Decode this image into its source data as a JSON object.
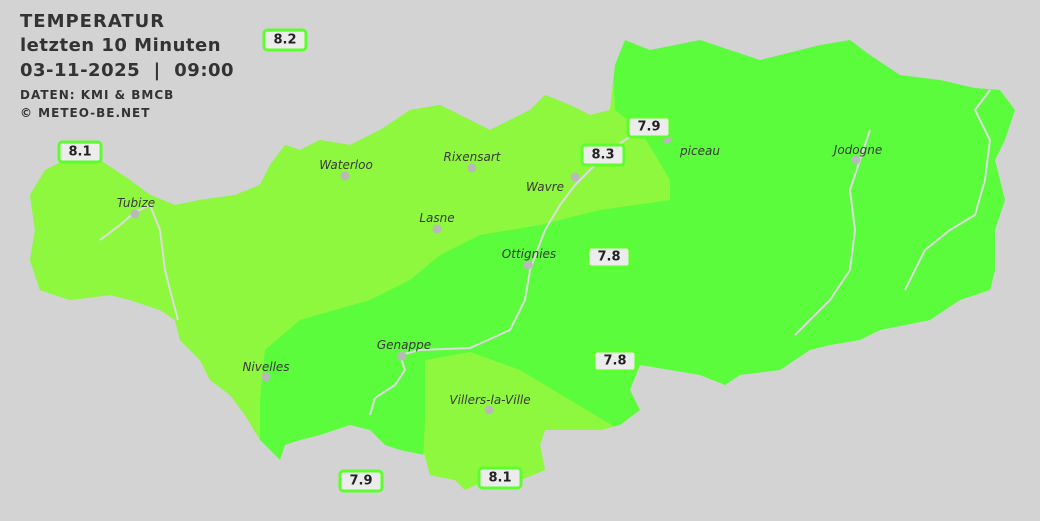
{
  "header": {
    "title": "TEMPERATUR",
    "subtitle": "letzten 10 Minuten",
    "datetime": "03-11-2025  |  09:00",
    "source": "DATEN: KMI & BMCB",
    "copyright": "© METEO-BE.NET"
  },
  "colors": {
    "background": "#d3d3d3",
    "temp_8_plus": "#8ef83e",
    "temp_7_8": "#5afc3c",
    "rivers": "#dcdcdc",
    "badge_border": "#5cff2c"
  },
  "towns": [
    {
      "name": "Tubize"
    },
    {
      "name": "Waterloo"
    },
    {
      "name": "Rixensart"
    },
    {
      "name": "Wavre"
    },
    {
      "name": "Lasne"
    },
    {
      "name": "Ottignies"
    },
    {
      "name": "piceau"
    },
    {
      "name": "Jodogne"
    },
    {
      "name": "Genappe"
    },
    {
      "name": "Nivelles"
    },
    {
      "name": "Villers-la-Ville"
    }
  ],
  "readings": [
    "8.2",
    "8.1",
    "7.9",
    "8.3",
    "7.8",
    "7.8",
    "7.9",
    "8.1"
  ]
}
